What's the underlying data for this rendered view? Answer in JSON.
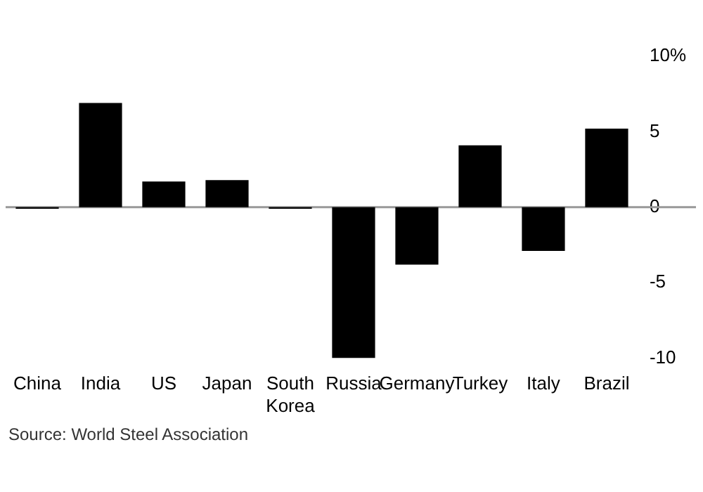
{
  "chart_data": {
    "type": "bar",
    "categories": [
      "China",
      "India",
      "US",
      "Japan",
      "South Korea",
      "Russia",
      "Germany",
      "Turkey",
      "Italy",
      "Brazil"
    ],
    "values": [
      -0.1,
      6.9,
      1.7,
      1.8,
      -0.1,
      -10,
      -3.8,
      4.1,
      -2.9,
      5.2
    ],
    "color": "#000000",
    "ylim": [
      -10,
      10
    ],
    "yticks": [
      {
        "value": 10,
        "label": "10%"
      },
      5,
      0,
      -5,
      -10
    ],
    "grid": false,
    "ref_lines": [
      {
        "axis": "y",
        "value": 0,
        "color": "#999999"
      }
    ],
    "annotations": [
      "Source: World Steel Association"
    ]
  }
}
